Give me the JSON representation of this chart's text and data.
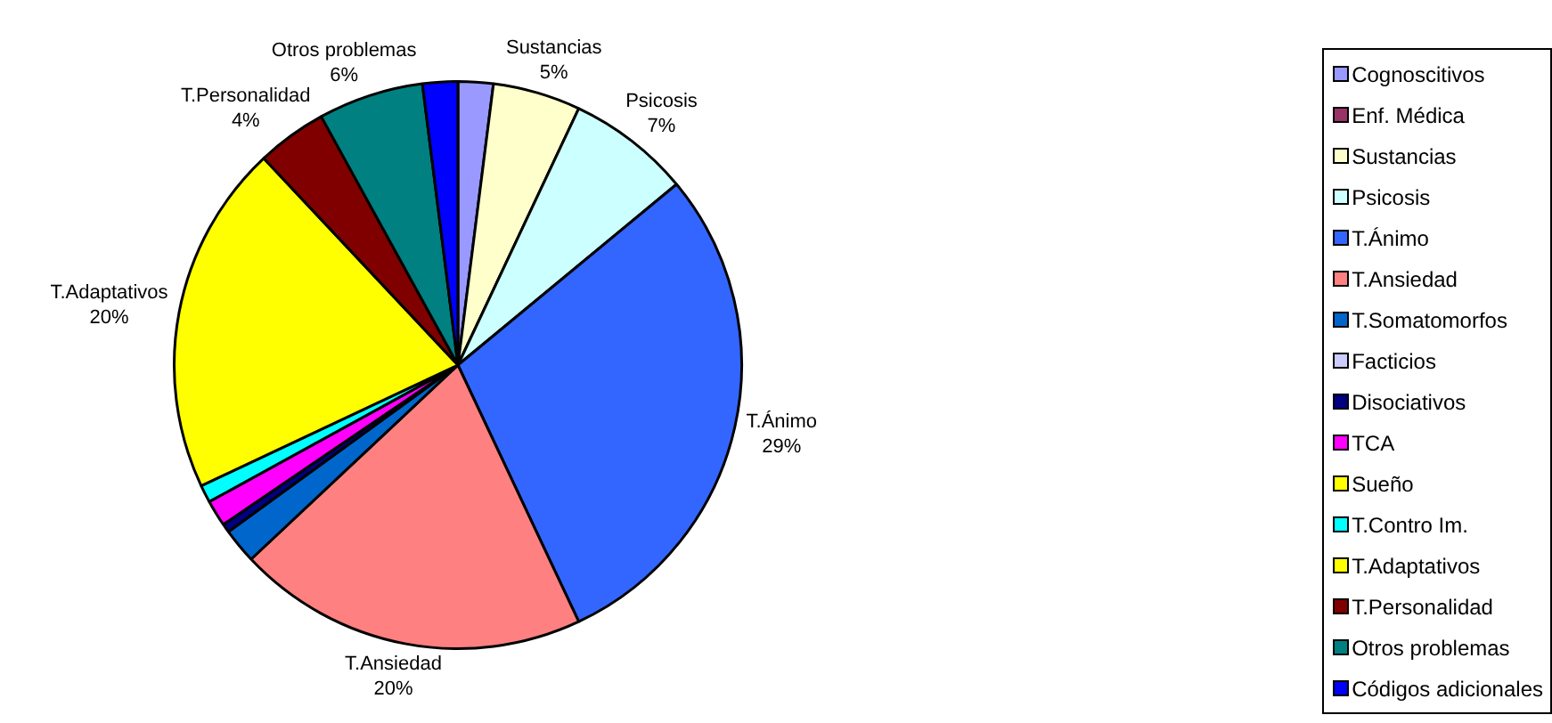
{
  "chart_data": {
    "type": "pie",
    "categories": [
      "Cognoscitivos",
      "Enf. Médica",
      "Sustancias",
      "Psicosis",
      "T.Ánimo",
      "T.Ansiedad",
      "T.Somatomorfos",
      "Facticios",
      "Disociativos",
      "TCA",
      "Sueño",
      "T.Contro Im.",
      "T.Adaptativos",
      "T.Personalidad",
      "Otros problemas",
      "Códigos adicionales"
    ],
    "values": [
      2,
      0,
      5,
      7,
      29,
      20,
      2,
      0,
      0.5,
      1.5,
      0,
      1,
      20,
      4,
      6,
      2
    ],
    "value_labels": [
      null,
      null,
      "5%",
      "7%",
      "29%",
      "20%",
      null,
      null,
      null,
      null,
      null,
      null,
      "20%",
      "4%",
      "6%",
      null
    ],
    "colors": [
      "#9999ff",
      "#993366",
      "#ffffcc",
      "#ccffff",
      "#3366ff",
      "#ff8080",
      "#0066cc",
      "#ccccff",
      "#000080",
      "#ff00ff",
      "#ffff00",
      "#00ffff",
      "#ffff00",
      "#800000",
      "#008080",
      "#0000ff"
    ],
    "legend": "right"
  }
}
